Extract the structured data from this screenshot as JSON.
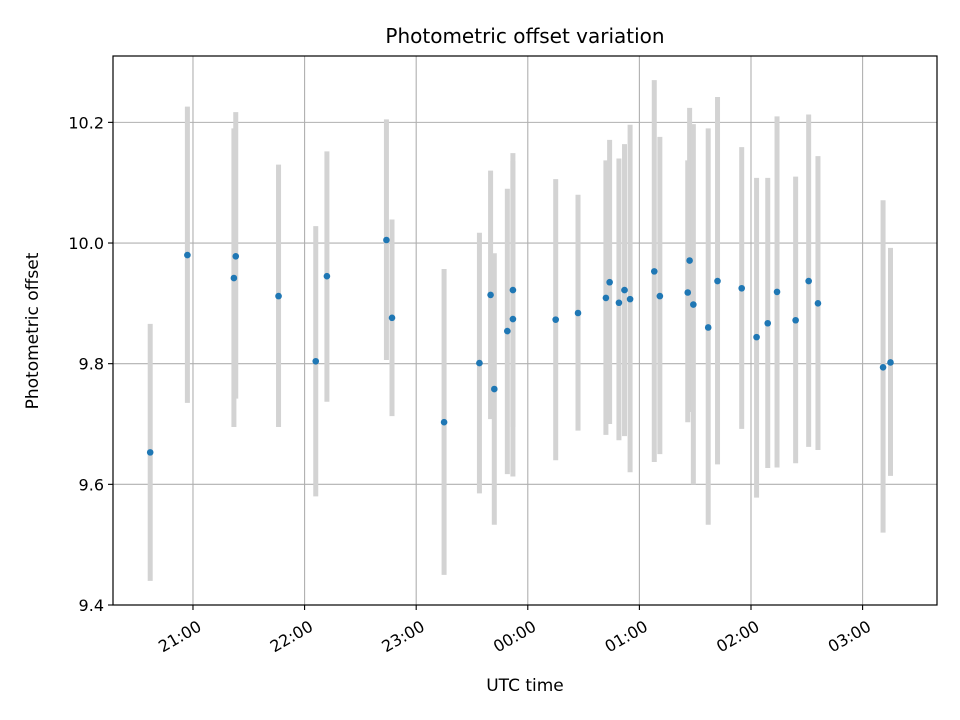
{
  "chart_data": {
    "type": "scatter",
    "title": "Photometric offset variation",
    "xlabel": "UTC time",
    "ylabel": "Photometric offset",
    "grid": true,
    "ylim": [
      9.4,
      10.31
    ],
    "xlim": [
      "20:17",
      "03:40"
    ],
    "x_day_boundary": "00:00",
    "yticks": [
      9.4,
      9.6,
      9.8,
      10.0,
      10.2
    ],
    "ytick_labels": [
      "9.4",
      "9.6",
      "9.8",
      "10.0",
      "10.2"
    ],
    "xticks": [
      "21:00",
      "22:00",
      "23:00",
      "00:00",
      "01:00",
      "02:00",
      "03:00"
    ],
    "xtick_labels": [
      "21:00",
      "22:00",
      "23:00",
      "00:00",
      "01:00",
      "02:00",
      "03:00"
    ],
    "colors": {
      "marker": "#1f77b4",
      "errorbar": "#d3d3d3",
      "grid": "#b0b0b0"
    },
    "points": [
      {
        "x": "20:37",
        "y": 9.653,
        "lo": 9.44,
        "hi": 9.866
      },
      {
        "x": "20:57",
        "y": 9.98,
        "lo": 9.735,
        "hi": 10.226
      },
      {
        "x": "21:22",
        "y": 9.942,
        "lo": 9.695,
        "hi": 10.19
      },
      {
        "x": "21:23",
        "y": 9.978,
        "lo": 9.742,
        "hi": 10.217
      },
      {
        "x": "21:46",
        "y": 9.912,
        "lo": 9.695,
        "hi": 10.13
      },
      {
        "x": "22:06",
        "y": 9.804,
        "lo": 9.58,
        "hi": 10.028
      },
      {
        "x": "22:12",
        "y": 9.945,
        "lo": 9.737,
        "hi": 10.152
      },
      {
        "x": "22:44",
        "y": 10.005,
        "lo": 9.806,
        "hi": 10.205
      },
      {
        "x": "22:47",
        "y": 9.876,
        "lo": 9.713,
        "hi": 10.039
      },
      {
        "x": "23:15",
        "y": 9.703,
        "lo": 9.45,
        "hi": 9.957
      },
      {
        "x": "23:34",
        "y": 9.801,
        "lo": 9.585,
        "hi": 10.017
      },
      {
        "x": "23:40",
        "y": 9.914,
        "lo": 9.708,
        "hi": 10.12
      },
      {
        "x": "23:42",
        "y": 9.758,
        "lo": 9.533,
        "hi": 9.983
      },
      {
        "x": "23:49",
        "y": 9.854,
        "lo": 9.617,
        "hi": 10.09
      },
      {
        "x": "23:52",
        "y": 9.922,
        "lo": 9.695,
        "hi": 10.149
      },
      {
        "x": "23:52",
        "y": 9.874,
        "lo": 9.613,
        "hi": 10.136
      },
      {
        "x": "00:15",
        "y": 9.873,
        "lo": 9.64,
        "hi": 10.106
      },
      {
        "x": "00:27",
        "y": 9.884,
        "lo": 9.689,
        "hi": 10.08
      },
      {
        "x": "00:42",
        "y": 9.909,
        "lo": 9.682,
        "hi": 10.137
      },
      {
        "x": "00:44",
        "y": 9.935,
        "lo": 9.7,
        "hi": 10.171
      },
      {
        "x": "00:49",
        "y": 9.901,
        "lo": 9.673,
        "hi": 10.14
      },
      {
        "x": "00:52",
        "y": 9.922,
        "lo": 9.68,
        "hi": 10.164
      },
      {
        "x": "00:55",
        "y": 9.907,
        "lo": 9.62,
        "hi": 10.196
      },
      {
        "x": "01:08",
        "y": 9.953,
        "lo": 9.637,
        "hi": 10.27
      },
      {
        "x": "01:11",
        "y": 9.912,
        "lo": 9.65,
        "hi": 10.176
      },
      {
        "x": "01:26",
        "y": 9.918,
        "lo": 9.703,
        "hi": 10.137
      },
      {
        "x": "01:27",
        "y": 9.971,
        "lo": 9.72,
        "hi": 10.224
      },
      {
        "x": "01:29",
        "y": 9.898,
        "lo": 9.6,
        "hi": 10.197
      },
      {
        "x": "01:37",
        "y": 9.86,
        "lo": 9.533,
        "hi": 10.19
      },
      {
        "x": "01:42",
        "y": 9.937,
        "lo": 9.633,
        "hi": 10.242
      },
      {
        "x": "01:55",
        "y": 9.925,
        "lo": 9.692,
        "hi": 10.159
      },
      {
        "x": "02:03",
        "y": 9.844,
        "lo": 9.578,
        "hi": 10.108
      },
      {
        "x": "02:09",
        "y": 9.867,
        "lo": 9.627,
        "hi": 10.108
      },
      {
        "x": "02:14",
        "y": 9.919,
        "lo": 9.628,
        "hi": 10.21
      },
      {
        "x": "02:24",
        "y": 9.872,
        "lo": 9.635,
        "hi": 10.11
      },
      {
        "x": "02:31",
        "y": 9.937,
        "lo": 9.662,
        "hi": 10.213
      },
      {
        "x": "02:36",
        "y": 9.9,
        "lo": 9.657,
        "hi": 10.144
      },
      {
        "x": "03:11",
        "y": 9.794,
        "lo": 9.52,
        "hi": 10.071
      },
      {
        "x": "03:15",
        "y": 9.802,
        "lo": 9.614,
        "hi": 9.992
      }
    ]
  }
}
